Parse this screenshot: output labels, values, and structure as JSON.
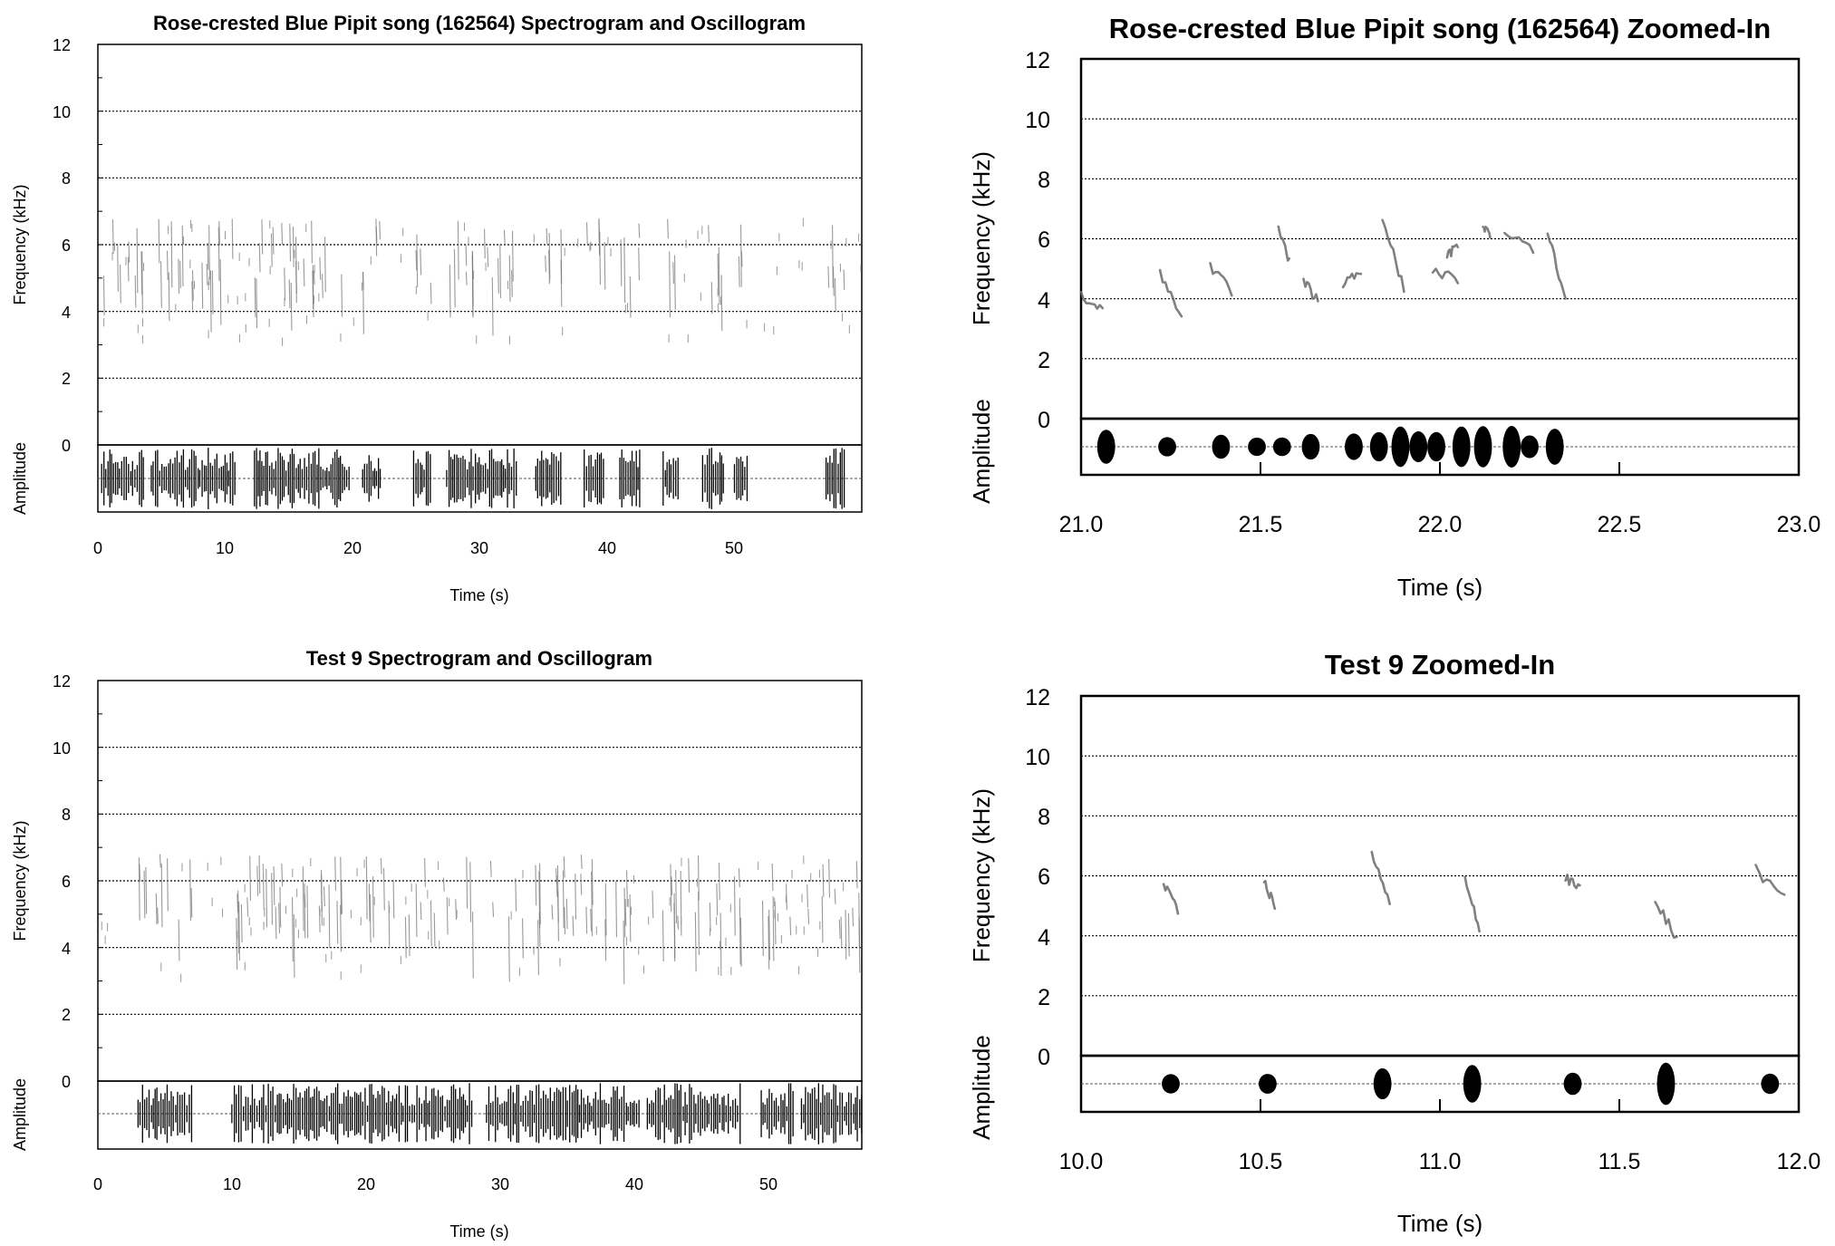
{
  "chart_data": [
    {
      "type": "spectrogram+oscillogram",
      "title": "Rose-crested Blue Pipit song (162564) Spectrogram and Oscillogram",
      "xlabel": "Time (s)",
      "ylabel": "Frequency (kHz)",
      "ylabel2": "Amplitude",
      "xlim": [
        0,
        60
      ],
      "ylim": [
        0,
        12
      ],
      "xticks": [
        "0",
        "10",
        "20",
        "30",
        "40",
        "50"
      ],
      "yticks": [
        "0",
        "2",
        "4",
        "6",
        "8",
        "10",
        "12"
      ],
      "grid": "horizontal dotted",
      "song_segments_s": [
        [
          0.3,
          3.6
        ],
        [
          4.2,
          10.8
        ],
        [
          12.3,
          19.8
        ],
        [
          20.8,
          22.3
        ],
        [
          24.8,
          26.2
        ],
        [
          27.4,
          33.0
        ],
        [
          34.4,
          36.5
        ],
        [
          38.2,
          39.8
        ],
        [
          41.0,
          42.6
        ],
        [
          44.4,
          45.6
        ],
        [
          47.5,
          49.2
        ],
        [
          50.0,
          51.0
        ],
        [
          57.2,
          58.7
        ]
      ]
    },
    {
      "type": "spectrogram+oscillogram",
      "title": "Rose-crested Blue Pipit song (162564) Zoomed-In",
      "xlabel": "Time (s)",
      "ylabel": "Frequency (kHz)",
      "ylabel2": "Amplitude",
      "xlim": [
        21.0,
        23.0
      ],
      "ylim": [
        0,
        12
      ],
      "xticks": [
        "21.0",
        "21.5",
        "22.0",
        "22.5",
        "23.0"
      ],
      "yticks": [
        "0",
        "2",
        "4",
        "6",
        "8",
        "10",
        "12"
      ],
      "grid": "horizontal dotted",
      "syllables": [
        {
          "t": [
            21.0,
            21.06
          ],
          "f": [
            4.1,
            3.7
          ]
        },
        {
          "t": [
            21.22,
            21.28
          ],
          "f": [
            4.8,
            3.5
          ]
        },
        {
          "t": [
            21.36,
            21.42
          ],
          "f": [
            5.1,
            4.2
          ]
        },
        {
          "t": [
            21.55,
            21.58
          ],
          "f": [
            6.3,
            5.2
          ]
        },
        {
          "t": [
            21.62,
            21.66
          ],
          "f": [
            4.6,
            3.9
          ]
        },
        {
          "t": [
            21.73,
            21.78
          ],
          "f": [
            4.5,
            4.9
          ]
        },
        {
          "t": [
            21.84,
            21.9
          ],
          "f": [
            6.7,
            4.3
          ]
        },
        {
          "t": [
            21.98,
            22.05
          ],
          "f": [
            5.0,
            4.6
          ]
        },
        {
          "t": [
            22.02,
            22.05
          ],
          "f": [
            5.4,
            5.8
          ]
        },
        {
          "t": [
            22.12,
            22.14
          ],
          "f": [
            6.5,
            6.1
          ]
        },
        {
          "t": [
            22.18,
            22.26
          ],
          "f": [
            6.3,
            5.7
          ]
        },
        {
          "t": [
            22.3,
            22.35
          ],
          "f": [
            6.2,
            4.0
          ]
        }
      ],
      "pulses_s": [
        21.07,
        21.24,
        21.39,
        21.49,
        21.56,
        21.64,
        21.76,
        21.83,
        21.89,
        21.94,
        21.99,
        22.06,
        22.12,
        22.2,
        22.25,
        22.32
      ]
    },
    {
      "type": "spectrogram+oscillogram",
      "title": "Test 9 Spectrogram and Oscillogram",
      "xlabel": "Time (s)",
      "ylabel": "Frequency (kHz)",
      "ylabel2": "Amplitude",
      "xlim": [
        0,
        57
      ],
      "ylim": [
        0,
        12
      ],
      "xticks": [
        "0",
        "10",
        "20",
        "30",
        "40",
        "50"
      ],
      "yticks": [
        "0",
        "2",
        "4",
        "6",
        "8",
        "10",
        "12"
      ],
      "grid": "horizontal dotted",
      "song_segments_s": [
        [
          3.0,
          7.0
        ],
        [
          10.0,
          28.0
        ],
        [
          29.0,
          40.5
        ],
        [
          41.0,
          48.0
        ],
        [
          49.5,
          52.0
        ],
        [
          52.5,
          57.0
        ]
      ]
    },
    {
      "type": "spectrogram+oscillogram",
      "title": "Test 9 Zoomed-In",
      "xlabel": "Time (s)",
      "ylabel": "Frequency (kHz)",
      "ylabel2": "Amplitude",
      "xlim": [
        10.0,
        12.0
      ],
      "ylim": [
        0,
        12
      ],
      "xticks": [
        "10.0",
        "10.5",
        "11.0",
        "11.5",
        "12.0"
      ],
      "yticks": [
        "0",
        "2",
        "4",
        "6",
        "8",
        "10",
        "12"
      ],
      "grid": "horizontal dotted",
      "syllables": [
        {
          "t": [
            10.23,
            10.27
          ],
          "f": [
            5.7,
            4.8
          ]
        },
        {
          "t": [
            10.51,
            10.54
          ],
          "f": [
            5.8,
            5.0
          ]
        },
        {
          "t": [
            10.81,
            10.86
          ],
          "f": [
            6.8,
            5.0
          ]
        },
        {
          "t": [
            11.07,
            11.11
          ],
          "f": [
            6.0,
            4.2
          ]
        },
        {
          "t": [
            11.35,
            11.39
          ],
          "f": [
            5.9,
            5.6
          ]
        },
        {
          "t": [
            11.6,
            11.66
          ],
          "f": [
            5.2,
            3.9
          ]
        },
        {
          "t": [
            11.88,
            11.96
          ],
          "f": [
            6.2,
            5.2
          ]
        }
      ],
      "pulses_s": [
        10.25,
        10.52,
        10.84,
        11.09,
        11.37,
        11.63,
        11.92
      ]
    }
  ]
}
